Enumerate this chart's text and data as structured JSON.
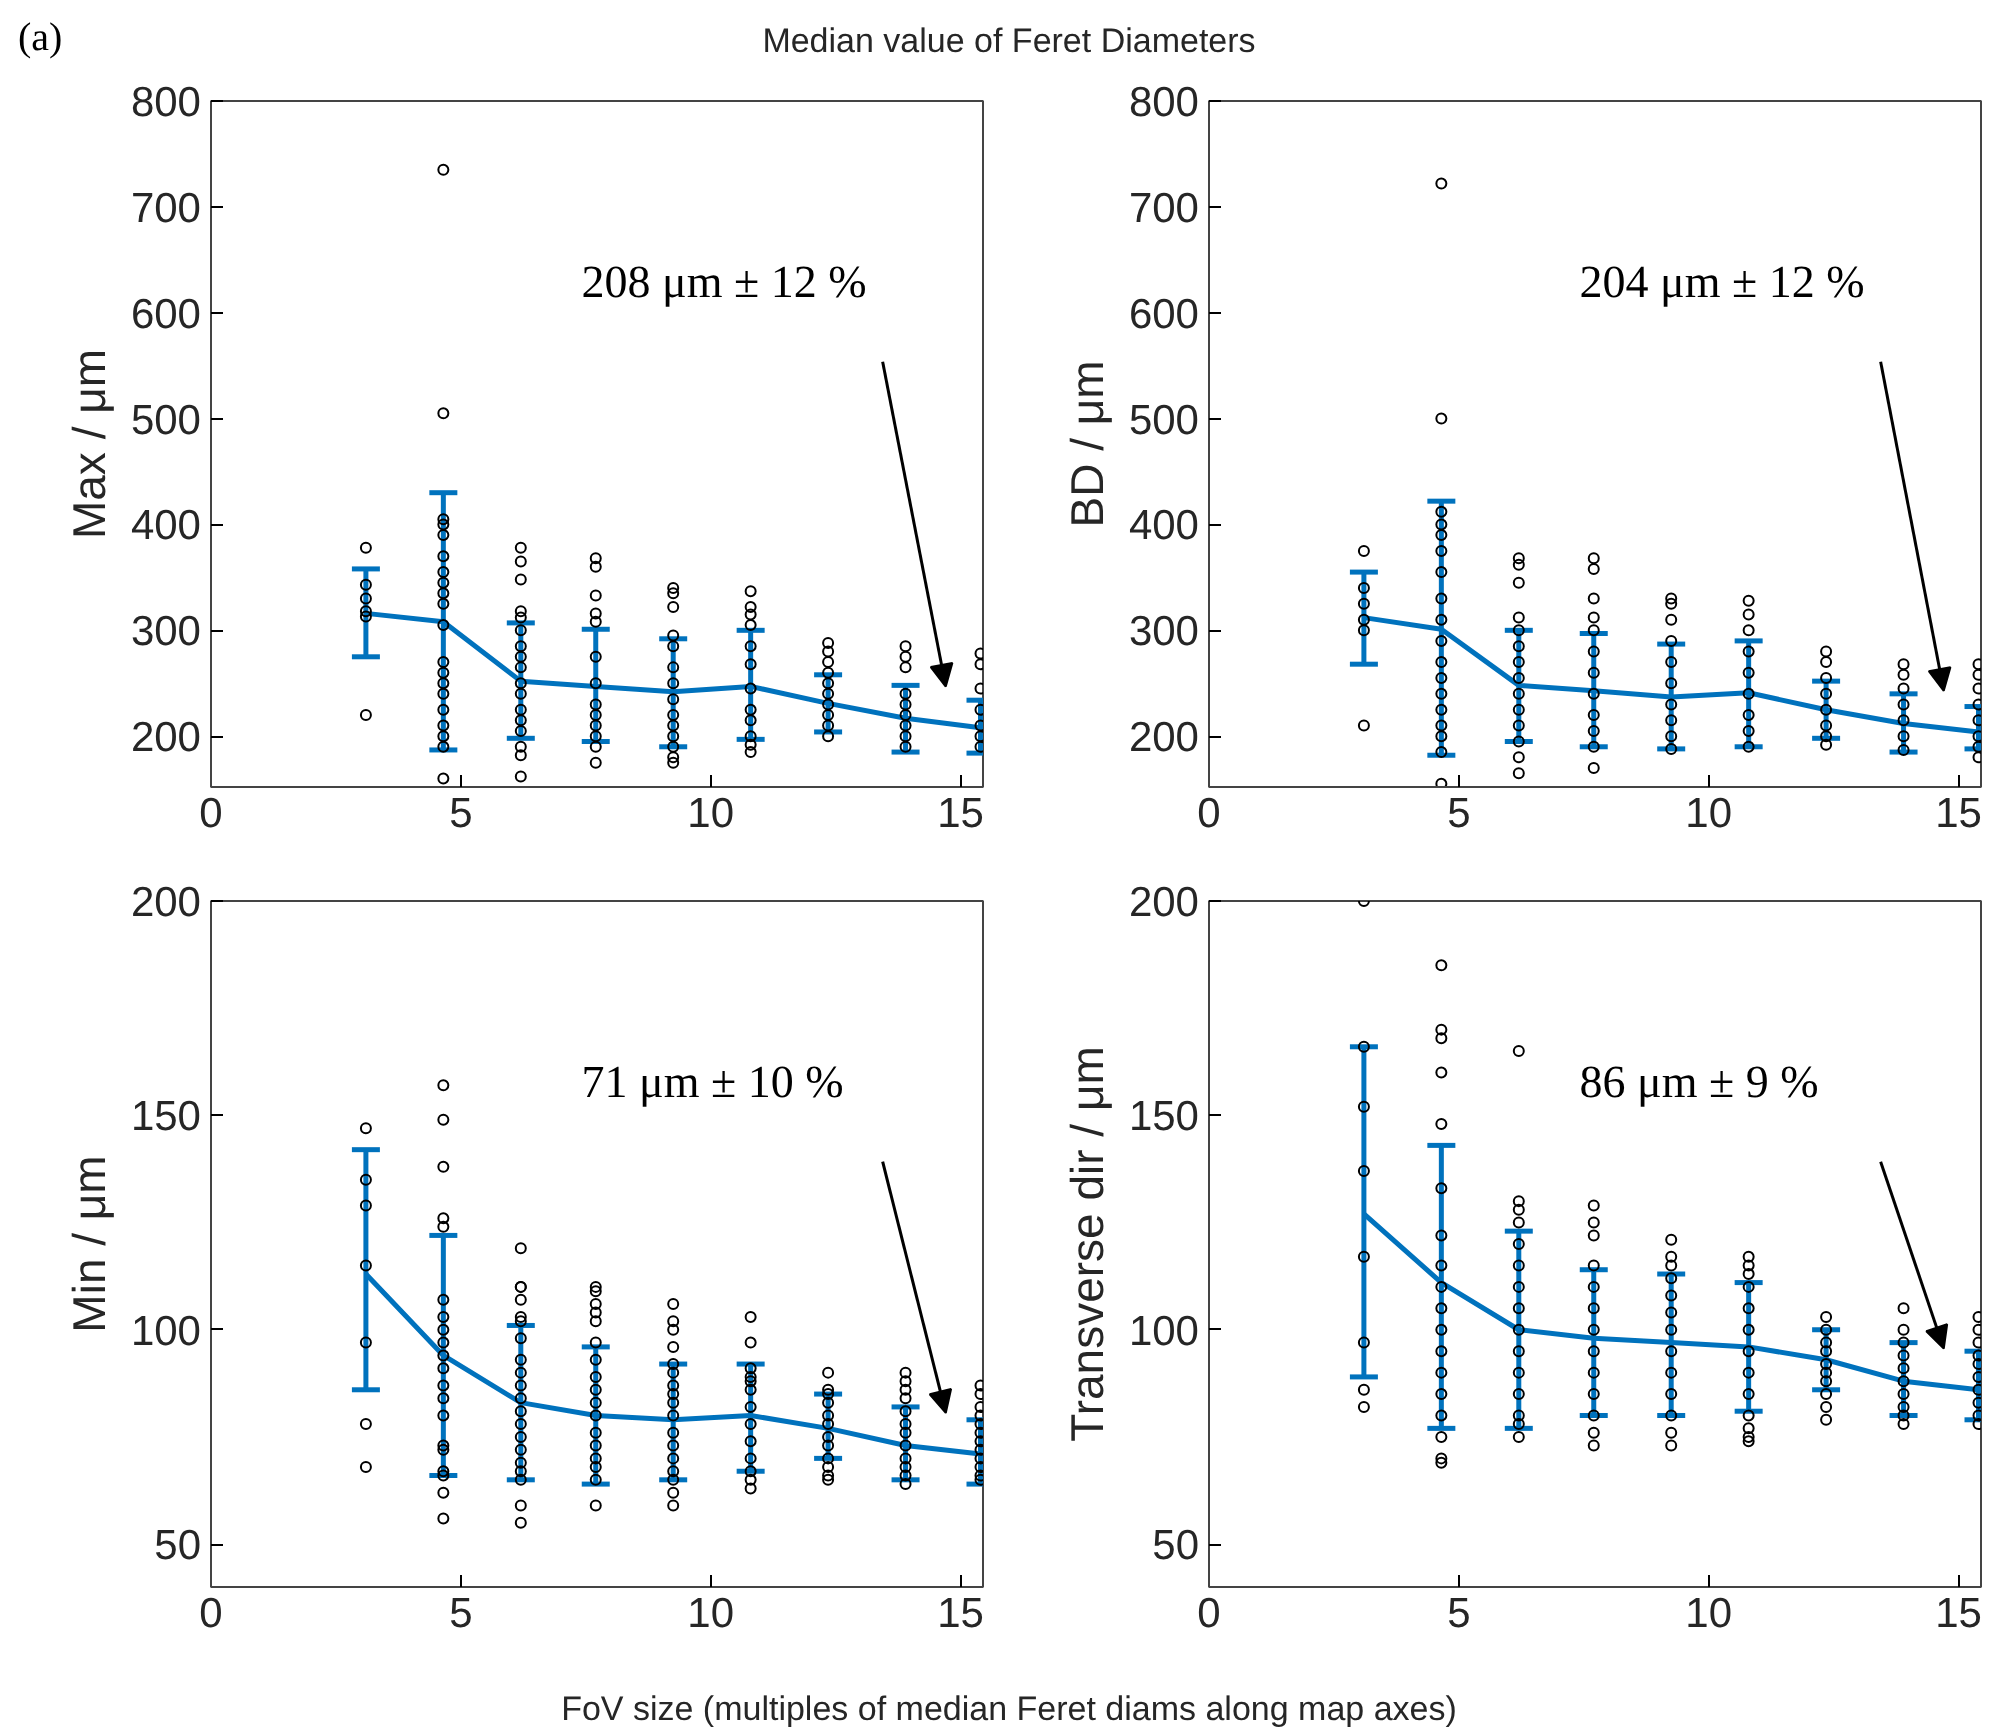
{
  "chart_data": [
    {
      "type": "line",
      "title": "Median value of Feret Diameters",
      "ylabel": "Max / μm",
      "xlim": [
        0,
        15.45
      ],
      "ylim": [
        152,
        800
      ],
      "xticks": [
        0,
        5,
        10,
        15
      ],
      "yticks": [
        200,
        300,
        400,
        500,
        600,
        700,
        800
      ],
      "grid": false,
      "annotations": [
        "(a)",
        "208 μm ± 12 %"
      ],
      "series": [
        {
          "color": "#0072bd",
          "x": [
            3.1,
            4.65,
            6.2,
            7.7,
            9.25,
            10.8,
            12.35,
            13.9,
            15.4
          ],
          "values": [
            316,
            308,
            252,
            247,
            242,
            247,
            231,
            217,
            208
          ],
          "errors": [
            [
              275,
              358
            ],
            [
              187,
              430
            ],
            [
              198,
              307
            ],
            [
              195,
              301
            ],
            [
              190,
              292
            ],
            [
              197,
              300
            ],
            [
              204,
              258
            ],
            [
              185,
              248
            ],
            [
              184,
              234
            ]
          ]
        },
        {
          "type": "scatter",
          "color": "#000000",
          "marker": "circle",
          "x": [
            3.1,
            3.1,
            3.1,
            3.1,
            3.1,
            3.1,
            4.65,
            4.65,
            4.65,
            4.65,
            4.65,
            4.65,
            4.65,
            4.65,
            4.65,
            4.65,
            4.65,
            4.65,
            4.65,
            4.65,
            4.65,
            4.65,
            4.65,
            4.65,
            4.65,
            4.65,
            6.2,
            6.2,
            6.2,
            6.2,
            6.2,
            6.2,
            6.2,
            6.2,
            6.2,
            6.2,
            6.2,
            6.2,
            6.2,
            6.2,
            6.2,
            6.2,
            6.2,
            7.7,
            7.7,
            7.7,
            7.7,
            7.7,
            7.7,
            7.7,
            7.7,
            7.7,
            7.7,
            7.7,
            7.7,
            7.7,
            9.25,
            9.25,
            9.25,
            9.25,
            9.25,
            9.25,
            9.25,
            9.25,
            9.25,
            9.25,
            9.25,
            9.25,
            9.25,
            9.25,
            10.8,
            10.8,
            10.8,
            10.8,
            10.8,
            10.8,
            10.8,
            10.8,
            10.8,
            10.8,
            10.8,
            10.8,
            12.35,
            12.35,
            12.35,
            12.35,
            12.35,
            12.35,
            12.35,
            12.35,
            12.35,
            12.35,
            13.9,
            13.9,
            13.9,
            13.9,
            13.9,
            13.9,
            13.9,
            13.9,
            13.9,
            15.4,
            15.4,
            15.4,
            15.4,
            15.4,
            15.4,
            15.4
          ],
          "values": [
            378,
            343,
            330,
            318,
            313,
            220,
            735,
            505,
            405,
            400,
            390,
            370,
            355,
            345,
            335,
            325,
            305,
            270,
            260,
            250,
            240,
            225,
            210,
            200,
            190,
            160,
            378,
            365,
            348,
            318,
            312,
            300,
            285,
            275,
            265,
            250,
            240,
            225,
            215,
            205,
            190,
            182,
            162,
            368,
            360,
            333,
            316,
            308,
            275,
            250,
            230,
            220,
            210,
            200,
            190,
            175,
            340,
            335,
            322,
            295,
            285,
            265,
            250,
            235,
            220,
            210,
            200,
            190,
            180,
            175,
            337,
            322,
            315,
            305,
            285,
            268,
            245,
            225,
            215,
            200,
            192,
            185,
            288,
            280,
            270,
            260,
            250,
            240,
            230,
            220,
            210,
            200,
            285,
            275,
            265,
            240,
            230,
            220,
            210,
            200,
            190,
            278,
            268,
            245,
            225,
            210,
            200,
            190
          ]
        }
      ]
    },
    {
      "type": "line",
      "ylabel": "BD / μm",
      "xlim": [
        0,
        15.45
      ],
      "ylim": [
        152,
        800
      ],
      "xticks": [
        0,
        5,
        10,
        15
      ],
      "yticks": [
        200,
        300,
        400,
        500,
        600,
        700,
        800
      ],
      "grid": false,
      "annotations": [
        "204 μm ± 12 %"
      ],
      "series": [
        {
          "color": "#0072bd",
          "x": [
            3.1,
            4.65,
            6.2,
            7.7,
            9.25,
            10.8,
            12.35,
            13.9,
            15.4
          ],
          "values": [
            312,
            301,
            248,
            243,
            237,
            241,
            225,
            212,
            204
          ],
          "errors": [
            [
              268,
              355
            ],
            [
              182,
              422
            ],
            [
              195,
              300
            ],
            [
              190,
              297
            ],
            [
              188,
              287
            ],
            [
              190,
              290
            ],
            [
              198,
              252
            ],
            [
              185,
              240
            ],
            [
              188,
              228
            ]
          ]
        },
        {
          "type": "scatter",
          "color": "#000000",
          "marker": "circle",
          "x": [
            3.1,
            3.1,
            3.1,
            3.1,
            3.1,
            3.1,
            4.65,
            4.65,
            4.65,
            4.65,
            4.65,
            4.65,
            4.65,
            4.65,
            4.65,
            4.65,
            4.65,
            4.65,
            4.65,
            4.65,
            4.65,
            4.65,
            4.65,
            4.65,
            6.2,
            6.2,
            6.2,
            6.2,
            6.2,
            6.2,
            6.2,
            6.2,
            6.2,
            6.2,
            6.2,
            6.2,
            6.2,
            6.2,
            7.7,
            7.7,
            7.7,
            7.7,
            7.7,
            7.7,
            7.7,
            7.7,
            7.7,
            7.7,
            7.7,
            7.7,
            9.25,
            9.25,
            9.25,
            9.25,
            9.25,
            9.25,
            9.25,
            9.25,
            9.25,
            9.25,
            10.8,
            10.8,
            10.8,
            10.8,
            10.8,
            10.8,
            10.8,
            10.8,
            10.8,
            12.35,
            12.35,
            12.35,
            12.35,
            12.35,
            12.35,
            12.35,
            12.35,
            13.9,
            13.9,
            13.9,
            13.9,
            13.9,
            13.9,
            13.9,
            15.4,
            15.4,
            15.4,
            15.4,
            15.4,
            15.4,
            15.4,
            15.4
          ],
          "values": [
            375,
            340,
            325,
            310,
            300,
            210,
            722,
            500,
            412,
            400,
            390,
            375,
            355,
            330,
            310,
            290,
            270,
            255,
            240,
            225,
            210,
            200,
            185,
            155,
            368,
            362,
            345,
            312,
            300,
            285,
            270,
            255,
            240,
            225,
            210,
            195,
            180,
            165,
            368,
            358,
            330,
            312,
            300,
            280,
            260,
            240,
            220,
            205,
            190,
            170,
            330,
            325,
            310,
            290,
            270,
            250,
            230,
            215,
            200,
            188,
            328,
            315,
            300,
            280,
            260,
            240,
            220,
            205,
            190,
            280,
            270,
            255,
            240,
            225,
            210,
            200,
            192,
            268,
            258,
            245,
            230,
            215,
            200,
            187,
            268,
            258,
            245,
            230,
            215,
            200,
            190,
            180
          ]
        }
      ]
    },
    {
      "type": "line",
      "ylabel": "Min / μm",
      "xlabel": "FoV size (multiples of median Feret diams along map axes)",
      "xlim": [
        0,
        15.45
      ],
      "ylim": [
        40,
        200
      ],
      "xticks": [
        0,
        5,
        10,
        15
      ],
      "yticks": [
        50,
        100,
        150,
        200
      ],
      "grid": false,
      "annotations": [
        "71 μm ± 10 %"
      ],
      "series": [
        {
          "color": "#0072bd",
          "x": [
            3.1,
            4.65,
            6.2,
            7.7,
            9.25,
            10.8,
            12.35,
            13.9,
            15.4
          ],
          "values": [
            113,
            94,
            83,
            80,
            79,
            80,
            77,
            73,
            71
          ],
          "errors": [
            [
              86,
              142
            ],
            [
              66,
              122
            ],
            [
              65,
              101
            ],
            [
              64,
              96
            ],
            [
              65,
              92
            ],
            [
              67,
              92
            ],
            [
              70,
              85
            ],
            [
              65,
              82
            ],
            [
              64,
              79
            ]
          ]
        },
        {
          "type": "scatter",
          "color": "#000000",
          "marker": "circle",
          "x": [
            3.1,
            3.1,
            3.1,
            3.1,
            3.1,
            3.1,
            3.1,
            4.65,
            4.65,
            4.65,
            4.65,
            4.65,
            4.65,
            4.65,
            4.65,
            4.65,
            4.65,
            4.65,
            4.65,
            4.65,
            4.65,
            4.65,
            4.65,
            4.65,
            4.65,
            4.65,
            4.65,
            6.2,
            6.2,
            6.2,
            6.2,
            6.2,
            6.2,
            6.2,
            6.2,
            6.2,
            6.2,
            6.2,
            6.2,
            6.2,
            6.2,
            6.2,
            6.2,
            6.2,
            6.2,
            6.2,
            6.2,
            7.7,
            7.7,
            7.7,
            7.7,
            7.7,
            7.7,
            7.7,
            7.7,
            7.7,
            7.7,
            7.7,
            7.7,
            7.7,
            7.7,
            7.7,
            7.7,
            7.7,
            9.25,
            9.25,
            9.25,
            9.25,
            9.25,
            9.25,
            9.25,
            9.25,
            9.25,
            9.25,
            9.25,
            9.25,
            9.25,
            9.25,
            9.25,
            9.25,
            9.25,
            10.8,
            10.8,
            10.8,
            10.8,
            10.8,
            10.8,
            10.8,
            10.8,
            10.8,
            10.8,
            10.8,
            10.8,
            10.8,
            12.35,
            12.35,
            12.35,
            12.35,
            12.35,
            12.35,
            12.35,
            12.35,
            12.35,
            12.35,
            12.35,
            12.35,
            13.9,
            13.9,
            13.9,
            13.9,
            13.9,
            13.9,
            13.9,
            13.9,
            13.9,
            13.9,
            13.9,
            13.9,
            15.4,
            15.4,
            15.4,
            15.4,
            15.4,
            15.4,
            15.4,
            15.4,
            15.4,
            15.4,
            15.4,
            15.4
          ],
          "values": [
            147,
            135,
            129,
            115,
            97,
            78,
            68,
            157,
            149,
            138,
            126,
            124,
            107,
            103,
            100,
            97,
            94,
            91,
            87,
            84,
            80,
            73,
            72,
            67,
            66,
            62,
            56,
            119,
            110,
            110,
            107,
            103,
            102,
            98,
            93,
            90,
            87,
            84,
            81,
            78,
            75,
            72,
            69,
            67,
            65,
            59,
            55,
            110,
            109,
            106,
            104,
            102,
            97,
            93,
            89,
            86,
            83,
            80,
            76,
            73,
            70,
            68,
            65,
            59,
            106,
            102,
            100,
            96,
            92,
            90,
            87,
            85,
            83,
            80,
            76,
            73,
            70,
            67,
            65,
            62,
            59,
            103,
            97,
            91,
            89,
            88,
            86,
            82,
            78,
            74,
            70,
            67,
            65,
            63,
            90,
            86,
            85,
            83,
            80,
            78,
            75,
            73,
            70,
            68,
            66,
            65,
            90,
            88,
            86,
            84,
            81,
            78,
            76,
            73,
            70,
            68,
            66,
            64,
            87,
            85,
            82,
            80,
            78,
            76,
            74,
            72,
            70,
            68,
            66,
            65
          ]
        }
      ]
    },
    {
      "type": "line",
      "ylabel": "Transverse dir / μm",
      "xlim": [
        0,
        15.45
      ],
      "ylim": [
        40,
        200
      ],
      "xticks": [
        0,
        5,
        10,
        15
      ],
      "yticks": [
        50,
        100,
        150,
        200
      ],
      "grid": false,
      "annotations": [
        "86 μm ± 9 %"
      ],
      "series": [
        {
          "color": "#0072bd",
          "x": [
            3.1,
            4.65,
            6.2,
            7.7,
            9.25,
            10.8,
            12.35,
            13.9,
            15.4
          ],
          "values": [
            127,
            111,
            100,
            98,
            97,
            96,
            93,
            88,
            86
          ],
          "errors": [
            [
              89,
              166
            ],
            [
              77,
              143
            ],
            [
              77,
              123
            ],
            [
              80,
              114
            ],
            [
              80,
              113
            ],
            [
              81,
              111
            ],
            [
              86,
              100
            ],
            [
              80,
              97
            ],
            [
              79,
              95
            ]
          ]
        },
        {
          "type": "scatter",
          "color": "#000000",
          "marker": "circle",
          "x": [
            3.1,
            3.1,
            3.1,
            3.1,
            3.1,
            3.1,
            3.1,
            3.1,
            4.65,
            4.65,
            4.65,
            4.65,
            4.65,
            4.65,
            4.65,
            4.65,
            4.65,
            4.65,
            4.65,
            4.65,
            4.65,
            4.65,
            4.65,
            4.65,
            4.65,
            4.65,
            6.2,
            6.2,
            6.2,
            6.2,
            6.2,
            6.2,
            6.2,
            6.2,
            6.2,
            6.2,
            6.2,
            6.2,
            6.2,
            6.2,
            6.2,
            7.7,
            7.7,
            7.7,
            7.7,
            7.7,
            7.7,
            7.7,
            7.7,
            7.7,
            7.7,
            7.7,
            7.7,
            7.7,
            9.25,
            9.25,
            9.25,
            9.25,
            9.25,
            9.25,
            9.25,
            9.25,
            9.25,
            9.25,
            9.25,
            9.25,
            9.25,
            10.8,
            10.8,
            10.8,
            10.8,
            10.8,
            10.8,
            10.8,
            10.8,
            10.8,
            10.8,
            10.8,
            10.8,
            10.8,
            12.35,
            12.35,
            12.35,
            12.35,
            12.35,
            12.35,
            12.35,
            12.35,
            12.35,
            12.35,
            13.9,
            13.9,
            13.9,
            13.9,
            13.9,
            13.9,
            13.9,
            13.9,
            13.9,
            13.9,
            15.4,
            15.4,
            15.4,
            15.4,
            15.4,
            15.4,
            15.4,
            15.4,
            15.4,
            15.4
          ],
          "values": [
            200,
            166,
            152,
            137,
            117,
            97,
            86,
            82,
            185,
            170,
            168,
            160,
            148,
            133,
            122,
            115,
            110,
            105,
            100,
            95,
            90,
            85,
            80,
            75,
            70,
            69,
            165,
            130,
            128,
            125,
            120,
            115,
            110,
            105,
            100,
            95,
            90,
            85,
            80,
            78,
            75,
            129,
            125,
            122,
            115,
            110,
            105,
            100,
            95,
            90,
            85,
            80,
            76,
            73,
            121,
            117,
            115,
            112,
            108,
            104,
            100,
            95,
            90,
            85,
            80,
            76,
            73,
            117,
            115,
            113,
            110,
            105,
            100,
            95,
            90,
            85,
            80,
            77,
            75,
            74,
            103,
            100,
            97,
            95,
            92,
            90,
            88,
            85,
            82,
            79,
            105,
            100,
            97,
            94,
            91,
            88,
            85,
            82,
            80,
            78,
            103,
            100,
            97,
            94,
            92,
            89,
            86,
            83,
            80,
            78
          ]
        }
      ]
    }
  ]
}
